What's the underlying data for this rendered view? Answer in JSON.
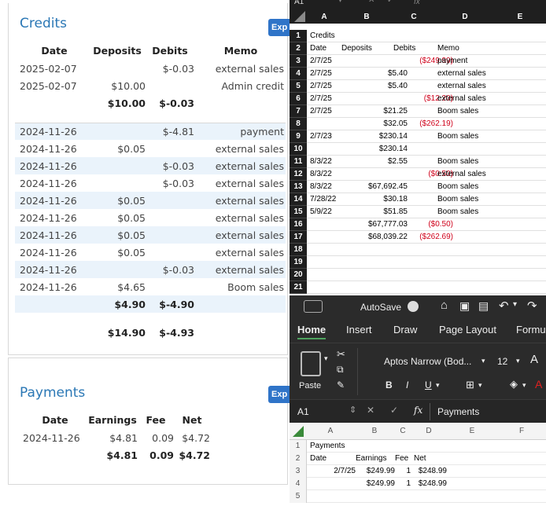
{
  "credits": {
    "title": "Credits",
    "export_label": "Exp",
    "headers": {
      "date": "Date",
      "deposits": "Deposits",
      "debits": "Debits",
      "memo": "Memo"
    },
    "rows1": [
      {
        "date": "2025-02-07",
        "deposits": "",
        "debits": "$-0.03",
        "memo": "external sales"
      },
      {
        "date": "2025-02-07",
        "deposits": "$10.00",
        "debits": "",
        "memo": "Admin credit"
      }
    ],
    "subtotal1": {
      "deposits": "$10.00",
      "debits": "$-0.03"
    },
    "rows2": [
      {
        "date": "2024-11-26",
        "deposits": "",
        "debits": "$-4.81",
        "memo": "payment"
      },
      {
        "date": "2024-11-26",
        "deposits": "$0.05",
        "debits": "",
        "memo": "external sales"
      },
      {
        "date": "2024-11-26",
        "deposits": "",
        "debits": "$-0.03",
        "memo": "external sales"
      },
      {
        "date": "2024-11-26",
        "deposits": "",
        "debits": "$-0.03",
        "memo": "external sales"
      },
      {
        "date": "2024-11-26",
        "deposits": "$0.05",
        "debits": "",
        "memo": "external sales"
      },
      {
        "date": "2024-11-26",
        "deposits": "$0.05",
        "debits": "",
        "memo": "external sales"
      },
      {
        "date": "2024-11-26",
        "deposits": "$0.05",
        "debits": "",
        "memo": "external sales"
      },
      {
        "date": "2024-11-26",
        "deposits": "$0.05",
        "debits": "",
        "memo": "external sales"
      },
      {
        "date": "2024-11-26",
        "deposits": "",
        "debits": "$-0.03",
        "memo": "external sales"
      },
      {
        "date": "2024-11-26",
        "deposits": "$4.65",
        "debits": "",
        "memo": "Boom sales"
      }
    ],
    "subtotal2": {
      "deposits": "$4.90",
      "debits": "$-4.90"
    },
    "total": {
      "deposits": "$14.90",
      "debits": "$-4.93"
    }
  },
  "payments": {
    "title": "Payments",
    "export_label": "Exp",
    "headers": {
      "date": "Date",
      "earnings": "Earnings",
      "fee": "Fee",
      "net": "Net"
    },
    "rows": [
      {
        "date": "2024-11-26",
        "earnings": "$4.81",
        "fee": "0.09",
        "net": "$4.72"
      }
    ],
    "total": {
      "earnings": "$4.81",
      "fee": "0.09",
      "net": "$4.72"
    }
  },
  "excel1": {
    "cell_ref": "A1",
    "fx": "fx",
    "columns": [
      "A",
      "B",
      "C",
      "D",
      "E"
    ],
    "row_numbers": [
      "1",
      "2",
      "3",
      "4",
      "5",
      "6",
      "7",
      "8",
      "9",
      "10",
      "11",
      "12",
      "13",
      "14",
      "15",
      "16",
      "17",
      "18",
      "19",
      "20",
      "21"
    ],
    "rows": [
      {
        "a": "Credits",
        "b": "",
        "c": "",
        "d": ""
      },
      {
        "a": "Date",
        "b": "Deposits",
        "c": "Debits",
        "d": "Memo"
      },
      {
        "a": "2/7/25",
        "b": "",
        "c": "($249.99)",
        "d": "payment"
      },
      {
        "a": "2/7/25",
        "b": "$5.40",
        "c": "",
        "d": "external sales"
      },
      {
        "a": "2/7/25",
        "b": "$5.40",
        "c": "",
        "d": "external sales"
      },
      {
        "a": "2/7/25",
        "b": "",
        "c": "($12.20)",
        "d": "external sales"
      },
      {
        "a": "2/7/25",
        "b": "$21.25",
        "c": "",
        "d": "Boom sales"
      },
      {
        "a": "",
        "b": "$32.05",
        "c": "($262.19)",
        "d": ""
      },
      {
        "a": "2/7/23",
        "b": "$230.14",
        "c": "",
        "d": "Boom sales"
      },
      {
        "a": "",
        "b": "$230.14",
        "c": "",
        "d": ""
      },
      {
        "a": "8/3/22",
        "b": "$2.55",
        "c": "",
        "d": "Boom sales"
      },
      {
        "a": "8/3/22",
        "b": "",
        "c": "($0.50)",
        "d": "external sales"
      },
      {
        "a": "8/3/22",
        "b": "$67,692.45",
        "c": "",
        "d": "Boom sales"
      },
      {
        "a": "7/28/22",
        "b": "$30.18",
        "c": "",
        "d": "Boom sales"
      },
      {
        "a": "5/9/22",
        "b": "$51.85",
        "c": "",
        "d": "Boom sales"
      },
      {
        "a": "",
        "b": "$67,777.03",
        "c": "($0.50)",
        "d": ""
      },
      {
        "a": "",
        "b": "$68,039.22",
        "c": "($262.69)",
        "d": ""
      },
      {
        "a": "",
        "b": "",
        "c": "",
        "d": ""
      },
      {
        "a": "",
        "b": "",
        "c": "",
        "d": ""
      },
      {
        "a": "",
        "b": "",
        "c": "",
        "d": ""
      },
      {
        "a": "",
        "b": "",
        "c": "",
        "d": ""
      }
    ]
  },
  "excel2": {
    "autosave": "AutoSave",
    "tabs": [
      "Home",
      "Insert",
      "Draw",
      "Page Layout",
      "Formu"
    ],
    "paste": "Paste",
    "font_name": "Aptos Narrow (Bod...",
    "font_size": "12",
    "bold": "B",
    "italic": "I",
    "underline": "U",
    "cell_ref": "A1",
    "fx": "fx",
    "formula_value": "Payments",
    "columns": [
      "A",
      "B",
      "C",
      "D",
      "E",
      "F"
    ],
    "row_numbers": [
      "1",
      "2",
      "3",
      "4",
      "5"
    ],
    "rows": [
      {
        "a": "Payments",
        "b": "",
        "c": "",
        "d": ""
      },
      {
        "a": "Date",
        "b": "Earnings",
        "c": "Fee",
        "d": "Net"
      },
      {
        "a": "2/7/25",
        "b": "$249.99",
        "c": "1",
        "d": "$248.99"
      },
      {
        "a": "",
        "b": "$249.99",
        "c": "1",
        "d": "$248.99"
      },
      {
        "a": "",
        "b": "",
        "c": "",
        "d": ""
      }
    ]
  }
}
